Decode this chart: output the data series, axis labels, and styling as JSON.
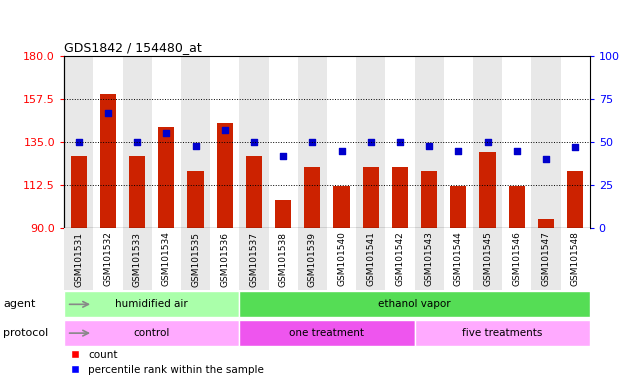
{
  "title": "GDS1842 / 154480_at",
  "samples": [
    "GSM101531",
    "GSM101532",
    "GSM101533",
    "GSM101534",
    "GSM101535",
    "GSM101536",
    "GSM101537",
    "GSM101538",
    "GSM101539",
    "GSM101540",
    "GSM101541",
    "GSM101542",
    "GSM101543",
    "GSM101544",
    "GSM101545",
    "GSM101546",
    "GSM101547",
    "GSM101548"
  ],
  "bar_values": [
    128,
    160,
    128,
    143,
    120,
    145,
    128,
    105,
    122,
    112,
    122,
    122,
    120,
    112,
    130,
    112,
    95,
    120
  ],
  "dot_values": [
    50,
    67,
    50,
    55,
    48,
    57,
    50,
    42,
    50,
    45,
    50,
    50,
    48,
    45,
    50,
    45,
    40,
    47
  ],
  "bar_color": "#cc2200",
  "dot_color": "#0000cc",
  "ylim_left": [
    90,
    180
  ],
  "ylim_right": [
    0,
    100
  ],
  "yticks_left": [
    90,
    112.5,
    135,
    157.5,
    180
  ],
  "yticks_right": [
    0,
    25,
    50,
    75,
    100
  ],
  "grid_lines": [
    112.5,
    135,
    157.5
  ],
  "agent_groups": [
    {
      "label": "humidified air",
      "start": 0,
      "end": 6,
      "color": "#aaffaa"
    },
    {
      "label": "ethanol vapor",
      "start": 6,
      "end": 18,
      "color": "#55dd55"
    }
  ],
  "protocol_groups": [
    {
      "label": "control",
      "start": 0,
      "end": 6,
      "color": "#ffaaff"
    },
    {
      "label": "one treatment",
      "start": 6,
      "end": 12,
      "color": "#ee55ee"
    },
    {
      "label": "five treatments",
      "start": 12,
      "end": 18,
      "color": "#ffaaff"
    }
  ],
  "legend_count_label": "count",
  "legend_pct_label": "percentile rank within the sample",
  "col_bg_odd": "#e8e8e8",
  "col_bg_even": "#ffffff"
}
